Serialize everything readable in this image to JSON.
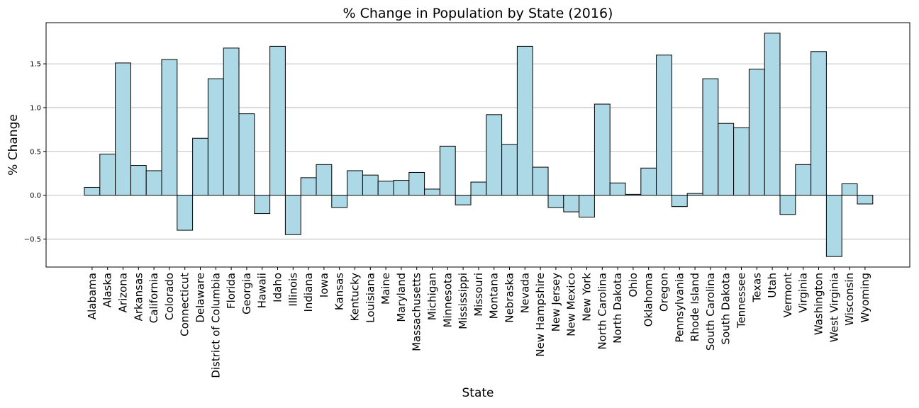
{
  "chart_data": {
    "type": "bar",
    "title": "% Change in Population by State (2016)",
    "xlabel": "State",
    "ylabel": "% Change",
    "ylim": [
      -0.82,
      1.97
    ],
    "yticks": [
      -0.5,
      0.0,
      0.5,
      1.0,
      1.5
    ],
    "ytick_labels": [
      "−0.5",
      "0.0",
      "0.5",
      "1.0",
      "1.5"
    ],
    "grid": "horizontal",
    "legend": "none",
    "bar_color": "#add8e6",
    "edge_color": "#000000",
    "categories": [
      "Alabama",
      "Alaska",
      "Arizona",
      "Arkansas",
      "California",
      "Colorado",
      "Connecticut",
      "Delaware",
      "District of Columbia",
      "Florida",
      "Georgia",
      "Hawaii",
      "Idaho",
      "Illinois",
      "Indiana",
      "Iowa",
      "Kansas",
      "Kentucky",
      "Louisiana",
      "Maine",
      "Maryland",
      "Massachusetts",
      "Michigan",
      "Minnesota",
      "Mississippi",
      "Missouri",
      "Montana",
      "Nebraska",
      "Nevada",
      "New Hampshire",
      "New Jersey",
      "New Mexico",
      "New York",
      "North Carolina",
      "North Dakota",
      "Ohio",
      "Oklahoma",
      "Oregon",
      "Pennsylvania",
      "Rhode Island",
      "South Carolina",
      "South Dakota",
      "Tennessee",
      "Texas",
      "Utah",
      "Vermont",
      "Virginia",
      "Washington",
      "West Virginia",
      "Wisconsin",
      "Wyoming"
    ],
    "values": [
      0.09,
      0.47,
      1.51,
      0.34,
      0.28,
      1.55,
      -0.4,
      0.65,
      1.33,
      1.68,
      0.93,
      -0.21,
      1.7,
      -0.45,
      0.2,
      0.35,
      -0.14,
      0.28,
      0.23,
      0.16,
      0.17,
      0.26,
      0.07,
      0.56,
      -0.11,
      0.15,
      0.92,
      0.58,
      1.7,
      0.32,
      -0.14,
      -0.19,
      -0.25,
      1.04,
      0.14,
      0.01,
      0.31,
      1.6,
      -0.13,
      0.02,
      1.33,
      0.82,
      0.77,
      1.44,
      1.85,
      -0.22,
      0.35,
      1.64,
      -0.7,
      0.13,
      -0.1
    ]
  }
}
